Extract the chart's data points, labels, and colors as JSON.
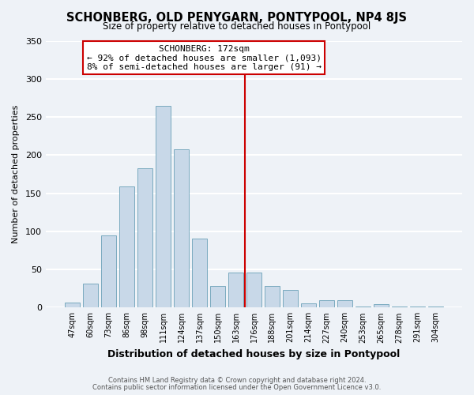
{
  "title": "SCHONBERG, OLD PENYGARN, PONTYPOOL, NP4 8JS",
  "subtitle": "Size of property relative to detached houses in Pontypool",
  "xlabel": "Distribution of detached houses by size in Pontypool",
  "ylabel": "Number of detached properties",
  "bar_labels": [
    "47sqm",
    "60sqm",
    "73sqm",
    "86sqm",
    "98sqm",
    "111sqm",
    "124sqm",
    "137sqm",
    "150sqm",
    "163sqm",
    "176sqm",
    "188sqm",
    "201sqm",
    "214sqm",
    "227sqm",
    "240sqm",
    "253sqm",
    "265sqm",
    "278sqm",
    "291sqm",
    "304sqm"
  ],
  "bar_values": [
    7,
    31,
    95,
    159,
    183,
    265,
    208,
    90,
    28,
    46,
    46,
    28,
    23,
    6,
    10,
    10,
    1,
    4,
    1,
    1,
    1
  ],
  "bar_color": "#c8d8e8",
  "bar_edge_color": "#7aaabf",
  "annotation_x_label": "176sqm",
  "annotation_line_color": "#cc0000",
  "annotation_box_edge_color": "#cc0000",
  "annotation_title": "SCHONBERG: 172sqm",
  "annotation_line1": "← 92% of detached houses are smaller (1,093)",
  "annotation_line2": "8% of semi-detached houses are larger (91) →",
  "ylim": [
    0,
    350
  ],
  "yticks": [
    0,
    50,
    100,
    150,
    200,
    250,
    300,
    350
  ],
  "footer1": "Contains HM Land Registry data © Crown copyright and database right 2024.",
  "footer2": "Contains public sector information licensed under the Open Government Licence v3.0.",
  "bg_color": "#eef2f7",
  "grid_color": "#ffffff"
}
